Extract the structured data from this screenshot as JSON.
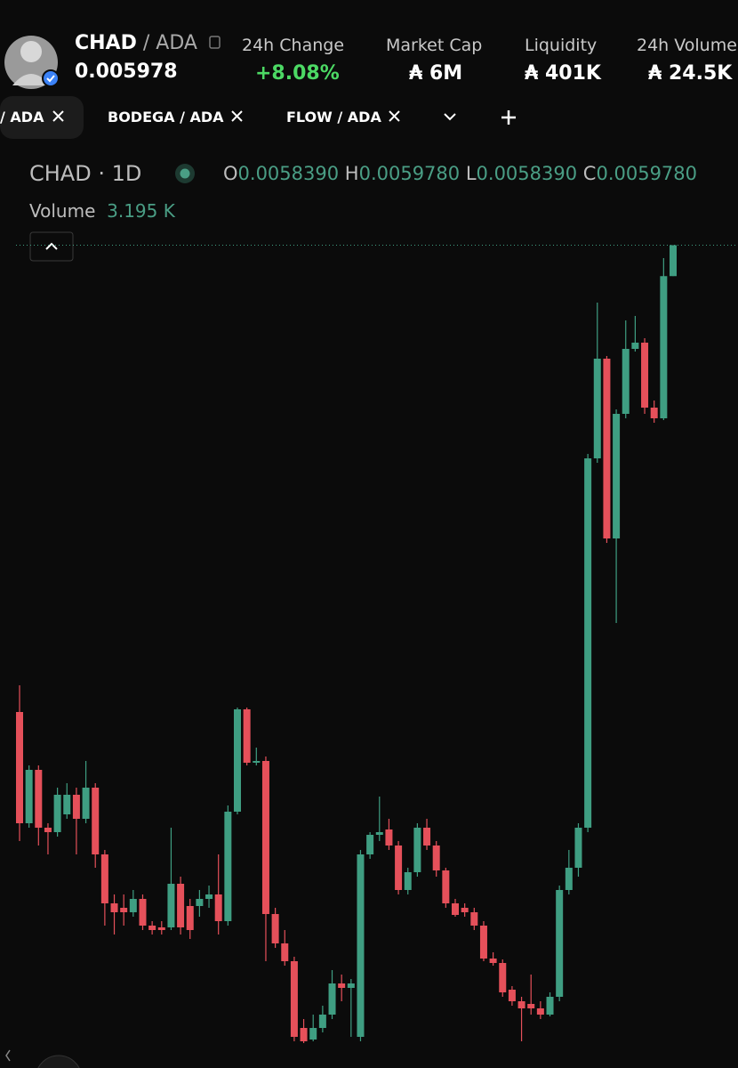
{
  "header": {
    "token": "CHAD",
    "pair": "/ ADA",
    "price": "0.005978",
    "stats": [
      {
        "label": "24h Change",
        "value": "+8.08%"
      },
      {
        "label": "Market Cap",
        "value": "₳ 6M"
      },
      {
        "label": "Liquidity",
        "value": "₳ 401K"
      },
      {
        "label": "24h Volume",
        "value": "₳ 24.5K"
      }
    ]
  },
  "tabs": [
    "/ ADA",
    "BODEGA / ADA",
    "FLOW / ADA"
  ],
  "legend": {
    "symbol": "CHAD · 1D",
    "o_label": "O",
    "o": "0.0058390",
    "h_label": "H",
    "h": "0.0059780",
    "l_label": "L",
    "l": "0.0058390",
    "c_label": "C",
    "c": "0.0059780",
    "volume_label": "Volume",
    "volume": "3.195 K"
  },
  "chart_data": {
    "type": "candlestick",
    "up_color": "#3f9e82",
    "down_color": "#e5505a",
    "ylim": [
      0.00228,
      0.0061
    ],
    "open": [
      0.00388,
      0.00338,
      0.00362,
      0.00336,
      0.00334,
      0.00342,
      0.003508,
      0.0034,
      0.00354,
      0.00324,
      0.00302,
      0.003,
      0.00298,
      0.00304,
      0.00292,
      0.002912,
      0.002912,
      0.003108,
      0.003008,
      0.003008,
      0.00304,
      0.00306,
      0.00294,
      0.003432,
      0.003892,
      0.003652,
      0.00366,
      0.002972,
      0.00284,
      0.00276,
      0.00246,
      0.002408,
      0.00246,
      0.00252,
      0.00266,
      0.00264,
      0.00242,
      0.00324,
      0.003328,
      0.003352,
      0.00328,
      0.00308,
      0.00316,
      0.00336,
      0.00328,
      0.003168,
      0.00302,
      0.003,
      0.00298,
      0.00292,
      0.002772,
      0.002752,
      0.002632,
      0.00258,
      0.002568,
      0.002548,
      0.00252,
      0.0026,
      0.00308,
      0.00318,
      0.00336,
      0.00502,
      0.005468,
      0.00466,
      0.00522,
      0.005512,
      0.00554,
      0.005248,
      0.0052,
      0.005839
    ],
    "high": [
      0.004,
      0.00364,
      0.00364,
      0.00338,
      0.00354,
      0.00356,
      0.00354,
      0.00366,
      0.00356,
      0.00326,
      0.00306,
      0.00306,
      0.00308,
      0.00306,
      0.00294,
      0.00294,
      0.00336,
      0.00314,
      0.00304,
      0.00308,
      0.0031,
      0.00324,
      0.00346,
      0.0039,
      0.0039,
      0.00372,
      0.00368,
      0.003,
      0.0029,
      0.00278,
      0.0025,
      0.00252,
      0.00256,
      0.00272,
      0.0027,
      0.00268,
      0.00326,
      0.00334,
      0.0035,
      0.0034,
      0.0033,
      0.00318,
      0.00338,
      0.0034,
      0.0033,
      0.00318,
      0.00304,
      0.00302,
      0.003,
      0.00294,
      0.0028,
      0.002768,
      0.002648,
      0.0026,
      0.0027,
      0.00258,
      0.00262,
      0.0031,
      0.00326,
      0.00338,
      0.00504,
      0.00572,
      0.00548,
      0.00524,
      0.00564,
      0.00566,
      0.00556,
      0.00528,
      0.00592,
      0.005978
    ],
    "low": [
      0.0033,
      0.00336,
      0.00328,
      0.00324,
      0.00332,
      0.0034,
      0.00324,
      0.00338,
      0.00318,
      0.00292,
      0.00288,
      0.00292,
      0.00296,
      0.0029,
      0.00288,
      0.00288,
      0.0029,
      0.00288,
      0.00286,
      0.00296,
      0.003,
      0.00288,
      0.00292,
      0.00342,
      0.00364,
      0.00364,
      0.00276,
      0.00282,
      0.00274,
      0.0024,
      0.002392,
      0.0024,
      0.00244,
      0.0025,
      0.00258,
      0.00242,
      0.0024,
      0.00322,
      0.0033,
      0.00326,
      0.00306,
      0.00306,
      0.00314,
      0.00326,
      0.00314,
      0.003,
      0.00296,
      0.00296,
      0.0029,
      0.00276,
      0.00274,
      0.0026,
      0.00256,
      0.0024,
      0.00252,
      0.0025,
      0.002512,
      0.00258,
      0.00306,
      0.00314,
      0.00334,
      0.005,
      0.00464,
      0.00428,
      0.0052,
      0.0055,
      0.00522,
      0.00518,
      0.005192,
      0.005839
    ],
    "close": [
      0.00338,
      0.00362,
      0.00336,
      0.00334,
      0.003508,
      0.003508,
      0.0034,
      0.00354,
      0.00324,
      0.00302,
      0.00298,
      0.00298,
      0.00304,
      0.00292,
      0.0029,
      0.0029,
      0.003108,
      0.002912,
      0.0029,
      0.00304,
      0.00306,
      0.00294,
      0.003432,
      0.003892,
      0.003652,
      0.00366,
      0.002972,
      0.00284,
      0.00276,
      0.00242,
      0.0024,
      0.00246,
      0.00252,
      0.00266,
      0.00264,
      0.00266,
      0.00324,
      0.003328,
      0.00334,
      0.00328,
      0.00308,
      0.00316,
      0.00336,
      0.00328,
      0.003168,
      0.00302,
      0.002968,
      0.00298,
      0.00292,
      0.002772,
      0.002752,
      0.00262,
      0.00258,
      0.002548,
      0.002548,
      0.00252,
      0.0026,
      0.00308,
      0.00318,
      0.00336,
      0.00502,
      0.005468,
      0.00466,
      0.00522,
      0.005512,
      0.00554,
      0.005248,
      0.0052,
      0.005839,
      0.005978
    ]
  }
}
